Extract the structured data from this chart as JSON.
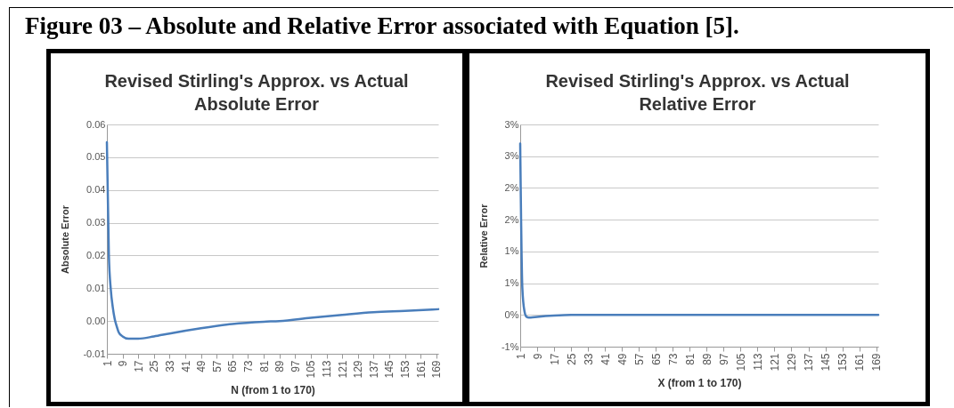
{
  "chart_data": [
    {
      "type": "line",
      "title": "Revised Stirling's Approx. vs Actual Absolute Error",
      "xlabel": "N (from 1 to 170)",
      "ylabel": "Absolute Error",
      "annotations": [
        "Figure 03 – Absolute and Relative Error associated with Equation [5]."
      ],
      "grid": "y",
      "xlim": [
        1,
        170
      ],
      "xticks": [
        1,
        9,
        17,
        25,
        33,
        41,
        49,
        57,
        65,
        73,
        81,
        89,
        97,
        105,
        113,
        121,
        129,
        137,
        145,
        153,
        161,
        169
      ],
      "ylim": [
        -0.01,
        0.06
      ],
      "yticks": [
        {
          "value": -0.01,
          "label": "-0.01"
        },
        {
          "value": 0,
          "label": "0.00"
        },
        {
          "value": 0.01,
          "label": "0.01"
        },
        {
          "value": 0.02,
          "label": "0.02"
        },
        {
          "value": 0.03,
          "label": "0.03"
        },
        {
          "value": 0.04,
          "label": "0.04"
        },
        {
          "value": 0.05,
          "label": "0.05"
        },
        {
          "value": 0.06,
          "label": "0.06"
        }
      ],
      "series": [
        {
          "color": "#4a7ebb",
          "x": [
            1,
            2,
            3,
            4,
            5,
            6,
            7,
            9,
            12,
            17,
            25,
            33,
            49,
            65,
            81,
            89,
            105,
            121,
            137,
            153,
            170
          ],
          "values": [
            0.0546,
            0.0203,
            0.0096,
            0.0042,
            0.0006,
            -0.0016,
            -0.0034,
            -0.0047,
            -0.0054,
            -0.0054,
            -0.0047,
            -0.0038,
            -0.0022,
            -0.0009,
            -0.0002,
            0,
            0.001,
            0.0019,
            0.0027,
            0.0031,
            0.0036
          ]
        }
      ]
    },
    {
      "type": "line",
      "title": "Revised Stirling's Approx. vs Actual Relative Error",
      "xlabel": "X (from 1 to 170)",
      "ylabel": "Relative Error",
      "grid": "y",
      "xlim": [
        1,
        170
      ],
      "xticks": [
        1,
        9,
        17,
        25,
        33,
        41,
        49,
        57,
        65,
        73,
        81,
        89,
        97,
        105,
        113,
        121,
        129,
        137,
        145,
        153,
        161,
        169
      ],
      "ylim": [
        -0.5,
        3
      ],
      "yticks": [
        {
          "value": -0.5,
          "label": "-1%"
        },
        {
          "value": 0,
          "label": "0%"
        },
        {
          "value": 0.5,
          "label": "1%"
        },
        {
          "value": 1,
          "label": "1%"
        },
        {
          "value": 1.5,
          "label": "2%"
        },
        {
          "value": 2,
          "label": "2%"
        },
        {
          "value": 2.5,
          "label": "3%"
        },
        {
          "value": 3,
          "label": "3%"
        }
      ],
      "series": [
        {
          "color": "#4a7ebb",
          "x": [
            1,
            2,
            3,
            4,
            5,
            6,
            9,
            17,
            25,
            55,
            170
          ],
          "values": [
            2.7,
            0.43,
            0.06,
            -0.03,
            -0.04,
            -0.04,
            -0.03,
            -0.01,
            0,
            0,
            0
          ]
        }
      ]
    }
  ]
}
